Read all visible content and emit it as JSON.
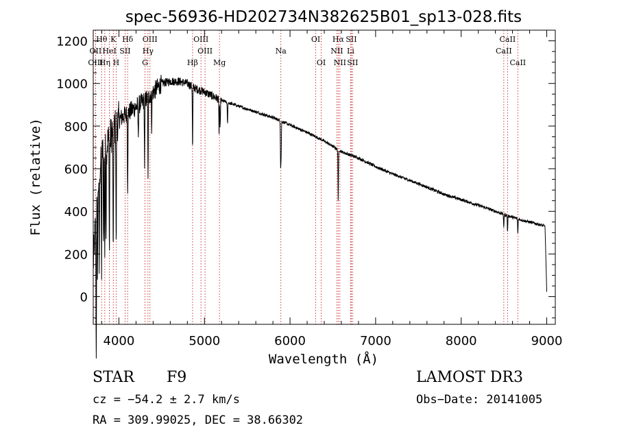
{
  "chart_data": {
    "type": "line",
    "title": "spec-56936-HD202734N382625B01_sp13-028.fits",
    "xlabel": "Wavelength (Å)",
    "ylabel": "Flux (relative)",
    "xlim": [
      3700,
      9100
    ],
    "ylim": [
      -130,
      1250
    ],
    "xticks": [
      4000,
      5000,
      6000,
      7000,
      8000,
      9000
    ],
    "yticks": [
      0,
      200,
      400,
      600,
      800,
      1000,
      1200
    ],
    "line_colors": {
      "spectrum": "#000000",
      "marker": "#c00000"
    },
    "continuum_knots": [
      [
        3700,
        150
      ],
      [
        3750,
        500
      ],
      [
        3800,
        680
      ],
      [
        3900,
        750
      ],
      [
        4000,
        830
      ],
      [
        4100,
        860
      ],
      [
        4200,
        890
      ],
      [
        4300,
        920
      ],
      [
        4400,
        960
      ],
      [
        4500,
        1000
      ],
      [
        4600,
        1010
      ],
      [
        4700,
        1010
      ],
      [
        4800,
        1000
      ],
      [
        4900,
        975
      ],
      [
        5000,
        960
      ],
      [
        5200,
        920
      ],
      [
        5500,
        880
      ],
      [
        5800,
        840
      ],
      [
        6000,
        805
      ],
      [
        6200,
        770
      ],
      [
        6400,
        730
      ],
      [
        6600,
        680
      ],
      [
        6800,
        650
      ],
      [
        7000,
        610
      ],
      [
        7200,
        575
      ],
      [
        7500,
        530
      ],
      [
        7800,
        480
      ],
      [
        8000,
        455
      ],
      [
        8300,
        415
      ],
      [
        8500,
        385
      ],
      [
        8700,
        360
      ],
      [
        8900,
        340
      ],
      [
        8980,
        330
      ],
      [
        9000,
        20
      ]
    ],
    "absorption_lines": [
      [
        3735,
        700
      ],
      [
        3750,
        350
      ],
      [
        3770,
        450
      ],
      [
        3797,
        550
      ],
      [
        3820,
        450
      ],
      [
        3835,
        500
      ],
      [
        3850,
        400
      ],
      [
        3889,
        550
      ],
      [
        3934,
        650
      ],
      [
        3968,
        600
      ],
      [
        4102,
        350
      ],
      [
        4226,
        150
      ],
      [
        4300,
        300
      ],
      [
        4340,
        400
      ],
      [
        4383,
        150
      ],
      [
        4861,
        300
      ],
      [
        5170,
        150
      ],
      [
        5183,
        150
      ],
      [
        5269,
        100
      ],
      [
        5890,
        200
      ],
      [
        5896,
        150
      ],
      [
        6563,
        250
      ],
      [
        8498,
        60
      ],
      [
        8542,
        80
      ],
      [
        8662,
        70
      ]
    ],
    "line_markers": [
      {
        "label": "Hθ",
        "wavelength": 3798,
        "row": 1
      },
      {
        "label": "OII",
        "wavelength": 3727,
        "row": 2
      },
      {
        "label": "OIII",
        "wavelength": 3727,
        "row": 3
      },
      {
        "label": "K",
        "wavelength": 3934,
        "row": 1
      },
      {
        "label": "HeI",
        "wavelength": 3889,
        "row": 2
      },
      {
        "label": "Hη",
        "wavelength": 3835,
        "row": 3
      },
      {
        "label": "H",
        "wavelength": 3968,
        "row": 3
      },
      {
        "label": "Hδ",
        "wavelength": 4102,
        "row": 1
      },
      {
        "label": "SII",
        "wavelength": 4072,
        "row": 2
      },
      {
        "label": "OIII",
        "wavelength": 4363,
        "row": 1
      },
      {
        "label": "Hγ",
        "wavelength": 4340,
        "row": 2
      },
      {
        "label": "G",
        "wavelength": 4305,
        "row": 3
      },
      {
        "label": "OIII",
        "wavelength": 4959,
        "row": 1
      },
      {
        "label": "OIII",
        "wavelength": 5007,
        "row": 2
      },
      {
        "label": "Hβ",
        "wavelength": 4861,
        "row": 3
      },
      {
        "label": "Mg",
        "wavelength": 5175,
        "row": 3
      },
      {
        "label": "Na",
        "wavelength": 5893,
        "row": 2
      },
      {
        "label": "OI",
        "wavelength": 6300,
        "row": 1
      },
      {
        "label": "OI",
        "wavelength": 6364,
        "row": 3
      },
      {
        "label": "Hα",
        "wavelength": 6563,
        "row": 1
      },
      {
        "label": "SII",
        "wavelength": 6716,
        "row": 1
      },
      {
        "label": "NII",
        "wavelength": 6548,
        "row": 2
      },
      {
        "label": "Li",
        "wavelength": 6708,
        "row": 2
      },
      {
        "label": "NII",
        "wavelength": 6583,
        "row": 3
      },
      {
        "label": "SII",
        "wavelength": 6731,
        "row": 3
      },
      {
        "label": "CaII",
        "wavelength": 8542,
        "row": 1
      },
      {
        "label": "CaII",
        "wavelength": 8498,
        "row": 2
      },
      {
        "label": "CaII",
        "wavelength": 8662,
        "row": 3
      }
    ]
  },
  "info": {
    "object_class": "STAR",
    "subclass": "F9",
    "survey": "LAMOST DR3",
    "cz": "cz = −54.2 ± 2.7 km/s",
    "obs_date": "Obs−Date: 20141005",
    "coords": "RA = 309.99025, DEC =  38.66302"
  }
}
